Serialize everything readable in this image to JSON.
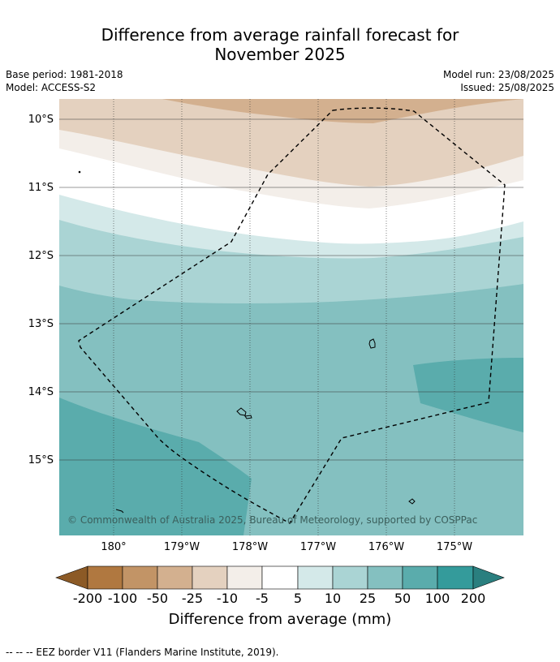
{
  "title_line1": "Difference from average rainfall forecast for",
  "title_line2": "November 2025",
  "meta_left": [
    "Base period: 1981-2018",
    "Model: ACCESS-S2"
  ],
  "meta_right": [
    "Model run: 23/08/2025",
    "Issued: 25/08/2025"
  ],
  "lat_labels": [
    "10°S",
    "11°S",
    "12°S",
    "13°S",
    "14°S",
    "15°S"
  ],
  "lon_labels": [
    "180°",
    "179°W",
    "178°W",
    "177°W",
    "176°W",
    "175°W"
  ],
  "credit": "© Commonwealth of Australia 2025, Bureau of Meteorology, supported by COSPPac",
  "colorbar": {
    "ticks": [
      "-200",
      "-100",
      "-50",
      "-25",
      "-10",
      "-5",
      "5",
      "10",
      "25",
      "50",
      "100",
      "200"
    ],
    "colors": [
      "#8c5a26",
      "#b07840",
      "#c29466",
      "#d3b08f",
      "#e4d1bf",
      "#f3eee9",
      "#ffffff",
      "#d4e9e9",
      "#aad4d4",
      "#84c0c0",
      "#5aacac",
      "#349b9b",
      "#2a7f7f"
    ],
    "title": "Difference from average (mm)"
  },
  "footer": "--  --  -- EEZ border V11 (Flanders Marine Institute, 2019).",
  "chart_data": {
    "type": "contour-map",
    "map_extent": {
      "lon": [
        179.2,
        -174.0
      ],
      "lat": [
        -9.7,
        -16.1
      ]
    },
    "variable": "Difference from average rainfall (mm)",
    "field_summary": [
      {
        "band": "north edge (~9.8°S), centre",
        "class": "-25 to -10"
      },
      {
        "band": "~10°S–10.8°S",
        "class": "-10 to -5"
      },
      {
        "band": "~11°S",
        "class": "-5 to -5 (neutral)"
      },
      {
        "band": "~11.8°S",
        "class": "5 to 10"
      },
      {
        "band": "~12°S–12.5°S",
        "class": "10 to 25"
      },
      {
        "band": "~12.5°S–16°S",
        "class": "25 to 50"
      },
      {
        "band": "SW corner and east (~14°S, 175°W)",
        "class": "50 to 100"
      }
    ]
  }
}
